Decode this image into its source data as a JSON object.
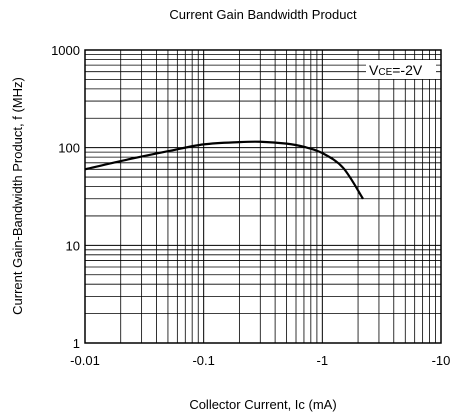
{
  "chart_data": {
    "type": "line",
    "title": "Current Gain Bandwidth Product",
    "xlabel": "Collector Current, Ic (mA)",
    "ylabel": "Current Gain-Bandwidth Product, f",
    "ylabel_unit": "(MHz)",
    "x_scale": "log",
    "y_scale": "log",
    "xlim": [
      0.01,
      10
    ],
    "ylim": [
      1,
      1000
    ],
    "x_ticks": [
      {
        "value": 0.01,
        "label": "-0.01"
      },
      {
        "value": 0.1,
        "label": "-0.1"
      },
      {
        "value": 1,
        "label": "-1"
      },
      {
        "value": 10,
        "label": "-10"
      }
    ],
    "y_ticks": [
      {
        "value": 1,
        "label": "1"
      },
      {
        "value": 10,
        "label": "10"
      },
      {
        "value": 100,
        "label": "100"
      },
      {
        "value": 1000,
        "label": "1000"
      }
    ],
    "grid": true,
    "annotation": {
      "prefix": "V",
      "subscript": "CE",
      "suffix": "=-2V",
      "position": "top-right"
    },
    "series": [
      {
        "x": [
          0.01,
          0.02,
          0.05,
          0.1,
          0.2,
          0.3,
          0.5,
          0.7,
          1.0,
          1.5,
          2.2
        ],
        "y": [
          60,
          73,
          92,
          108,
          114,
          115,
          110,
          102,
          88,
          62,
          30
        ]
      }
    ],
    "colors": {
      "line": "#000000",
      "grid": "#000000"
    }
  }
}
